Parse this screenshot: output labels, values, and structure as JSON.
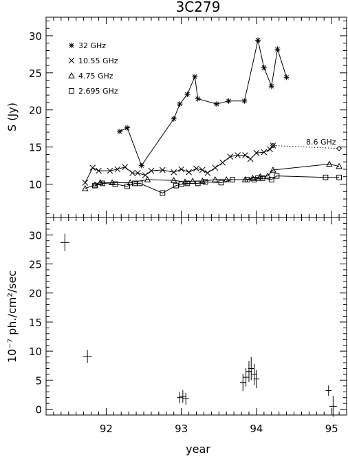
{
  "chart_data": [
    {
      "type": "line",
      "title": "3C279",
      "ylabel": "S (Jy)",
      "xlabel": "",
      "xlim": [
        91.2,
        95.2
      ],
      "ylim": [
        5.5,
        32.5
      ],
      "yticks": [
        10,
        15,
        20,
        25,
        30
      ],
      "legend": {
        "placement": "top-left"
      },
      "annotations": [
        {
          "text": "8.6 GHz"
        }
      ],
      "series": [
        {
          "name": "32 GHz",
          "marker": "asterisk",
          "linestyle": "solid",
          "x": [
            92.18,
            92.28,
            92.47,
            92.9,
            92.98,
            93.08,
            93.18,
            93.22,
            93.47,
            93.63,
            93.84,
            94.02,
            94.1,
            94.2,
            94.28,
            94.4
          ],
          "y": [
            17.1,
            17.6,
            12.5,
            18.8,
            20.8,
            22.1,
            24.5,
            21.5,
            20.8,
            21.2,
            21.2,
            29.4,
            25.7,
            23.2,
            28.2,
            24.4
          ]
        },
        {
          "name": "10.55 GHz",
          "marker": "cross",
          "linestyle": "solid",
          "x": [
            91.72,
            91.82,
            91.9,
            92.05,
            92.15,
            92.25,
            92.35,
            92.42,
            92.52,
            92.6,
            92.75,
            92.9,
            93.0,
            93.1,
            93.2,
            93.28,
            93.35,
            93.45,
            93.55,
            93.65,
            93.75,
            93.85,
            93.92,
            94.0,
            94.1,
            94.18,
            94.22
          ],
          "y": [
            10.2,
            12.2,
            11.8,
            11.8,
            12.0,
            12.3,
            11.5,
            11.5,
            11.2,
            11.8,
            11.9,
            11.6,
            12.0,
            11.6,
            12.1,
            11.9,
            11.5,
            12.2,
            12.9,
            13.7,
            13.9,
            13.9,
            13.4,
            14.2,
            14.3,
            14.7,
            15.2
          ]
        },
        {
          "name": "4.75 GHz",
          "marker": "triangle",
          "linestyle": "solid",
          "x": [
            91.72,
            91.85,
            91.92,
            92.08,
            92.32,
            92.55,
            92.9,
            93.05,
            93.15,
            93.28,
            93.45,
            93.6,
            93.85,
            93.95,
            94.05,
            94.15,
            94.22,
            94.97,
            95.1
          ],
          "y": [
            9.4,
            9.9,
            10.2,
            10.2,
            10.2,
            10.6,
            10.5,
            10.3,
            10.4,
            10.4,
            10.6,
            10.6,
            10.6,
            10.8,
            11.0,
            11.1,
            11.9,
            12.7,
            12.4
          ]
        },
        {
          "name": "2.695 GHz",
          "marker": "square",
          "linestyle": "solid",
          "x": [
            91.85,
            91.95,
            92.12,
            92.28,
            92.38,
            92.45,
            92.75,
            92.93,
            93.0,
            93.08,
            93.22,
            93.32,
            93.53,
            93.68,
            93.88,
            93.97,
            94.02,
            94.08,
            94.2,
            94.27,
            94.92,
            95.1
          ],
          "y": [
            9.8,
            10.1,
            10.0,
            9.7,
            10.1,
            10.1,
            8.8,
            9.8,
            10.0,
            10.1,
            10.1,
            10.3,
            10.2,
            10.6,
            10.6,
            10.6,
            10.8,
            10.8,
            10.6,
            11.1,
            10.9,
            10.9
          ]
        },
        {
          "name": "8.6 GHz",
          "marker": "diamond",
          "linestyle": "dotted",
          "x": [
            94.22,
            95.1
          ],
          "y": [
            15.2,
            14.8
          ]
        }
      ]
    },
    {
      "type": "scatter",
      "title": "",
      "ylabel": "10⁻⁷ ph./cm²/sec",
      "xlabel": "year",
      "xlim": [
        91.2,
        95.2
      ],
      "ylim": [
        -1,
        33
      ],
      "yticks": [
        0,
        5,
        10,
        15,
        20,
        25,
        30
      ],
      "xticks": [
        92,
        93,
        94,
        95
      ],
      "marker": "plus-with-errorbars",
      "points": [
        {
          "x": 91.45,
          "y": 28.7,
          "xerr": 0.06,
          "yerr": 1.5
        },
        {
          "x": 91.75,
          "y": 9.1,
          "xerr": 0.06,
          "yerr": 1.1
        },
        {
          "x": 92.98,
          "y": 2.0,
          "xerr": 0.04,
          "yerr": 1.0
        },
        {
          "x": 93.02,
          "y": 2.2,
          "xerr": 0.04,
          "yerr": 1.1
        },
        {
          "x": 93.06,
          "y": 1.8,
          "xerr": 0.04,
          "yerr": 1.0
        },
        {
          "x": 93.82,
          "y": 4.6,
          "xerr": 0.04,
          "yerr": 1.5
        },
        {
          "x": 93.86,
          "y": 5.5,
          "xerr": 0.04,
          "yerr": 1.6
        },
        {
          "x": 93.9,
          "y": 6.5,
          "xerr": 0.04,
          "yerr": 1.8
        },
        {
          "x": 93.93,
          "y": 7.0,
          "xerr": 0.04,
          "yerr": 2.0
        },
        {
          "x": 93.97,
          "y": 6.0,
          "xerr": 0.04,
          "yerr": 1.8
        },
        {
          "x": 94.0,
          "y": 5.2,
          "xerr": 0.04,
          "yerr": 1.6
        },
        {
          "x": 94.96,
          "y": 3.2,
          "xerr": 0.04,
          "yerr": 0.9
        },
        {
          "x": 95.02,
          "y": 0.5,
          "xerr": 0.05,
          "yerr": 1.8
        }
      ]
    }
  ]
}
